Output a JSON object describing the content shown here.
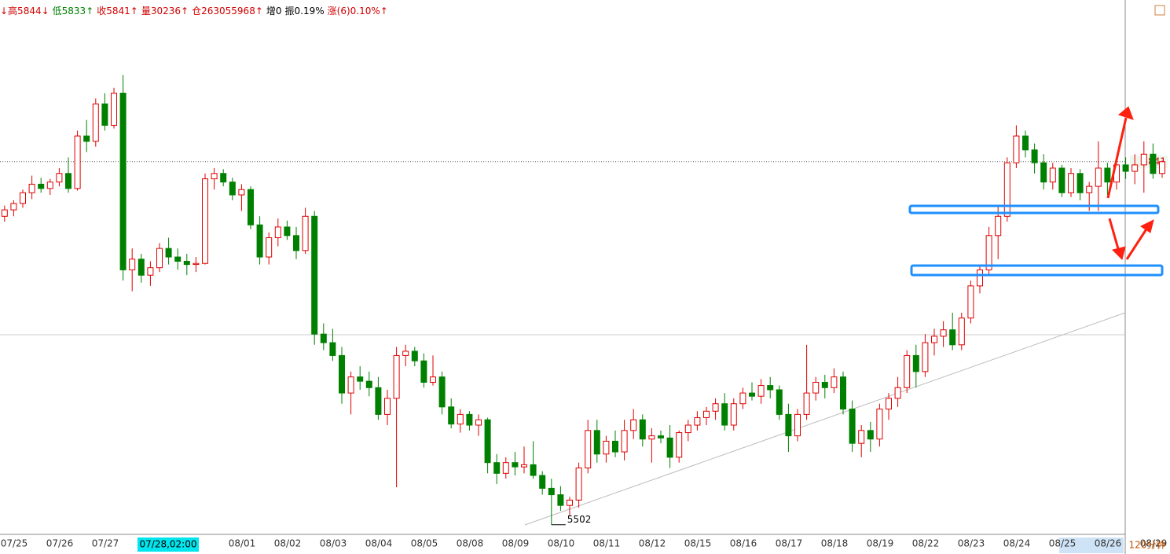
{
  "chart_data": {
    "type": "candlestick",
    "header": [
      "↓高5844↓",
      "低5833↑",
      "收5841↑",
      "量30236↑",
      "仓263055968↑",
      "增0",
      "振0.19%",
      "涨(6)0.10%↑"
    ],
    "ylim": [
      5493,
      5992
    ],
    "candles_per_day": 5,
    "day_labels": [
      "07/25",
      "07/26",
      "07/27",
      null,
      null,
      "08/01",
      "08/02",
      "08/03",
      "08/04",
      "08/05",
      "08/08",
      "08/09",
      "08/10",
      "08/11",
      "08/12",
      "08/15",
      "08/16",
      "08/17",
      "08/18",
      "08/19",
      "08/22",
      "08/23",
      "08/24",
      "08/25",
      "08/26",
      "08/29"
    ],
    "cursor_label": "07/28,02:00",
    "period_label": "120分钟",
    "last_price": 5841,
    "low_label": 5502,
    "candles": [
      [
        5790,
        5800,
        5785,
        5796
      ],
      [
        5796,
        5805,
        5790,
        5802
      ],
      [
        5802,
        5815,
        5798,
        5812
      ],
      [
        5812,
        5828,
        5806,
        5820
      ],
      [
        5820,
        5826,
        5812,
        5816
      ],
      [
        5816,
        5825,
        5810,
        5822
      ],
      [
        5822,
        5835,
        5818,
        5830
      ],
      [
        5830,
        5845,
        5812,
        5816
      ],
      [
        5816,
        5870,
        5814,
        5865
      ],
      [
        5865,
        5880,
        5850,
        5860
      ],
      [
        5860,
        5900,
        5855,
        5895
      ],
      [
        5895,
        5905,
        5870,
        5875
      ],
      [
        5875,
        5910,
        5872,
        5905
      ],
      [
        5905,
        5922,
        5730,
        5740
      ],
      [
        5740,
        5760,
        5720,
        5750
      ],
      [
        5750,
        5755,
        5728,
        5735
      ],
      [
        5735,
        5748,
        5725,
        5742
      ],
      [
        5742,
        5765,
        5738,
        5760
      ],
      [
        5760,
        5770,
        5745,
        5752
      ],
      [
        5752,
        5760,
        5740,
        5748
      ],
      [
        5748,
        5755,
        5735,
        5745
      ],
      [
        5745,
        5752,
        5738,
        5746
      ],
      [
        5746,
        5830,
        5745,
        5825
      ],
      [
        5825,
        5835,
        5815,
        5830
      ],
      [
        5830,
        5834,
        5818,
        5822
      ],
      [
        5822,
        5826,
        5805,
        5810
      ],
      [
        5810,
        5820,
        5795,
        5815
      ],
      [
        5815,
        5818,
        5778,
        5782
      ],
      [
        5782,
        5790,
        5745,
        5752
      ],
      [
        5752,
        5775,
        5745,
        5770
      ],
      [
        5770,
        5788,
        5762,
        5780
      ],
      [
        5780,
        5786,
        5768,
        5772
      ],
      [
        5772,
        5780,
        5750,
        5758
      ],
      [
        5758,
        5798,
        5755,
        5790
      ],
      [
        5790,
        5795,
        5670,
        5680
      ],
      [
        5680,
        5690,
        5665,
        5672
      ],
      [
        5672,
        5685,
        5655,
        5660
      ],
      [
        5660,
        5668,
        5615,
        5625
      ],
      [
        5625,
        5645,
        5605,
        5640
      ],
      [
        5640,
        5650,
        5628,
        5636
      ],
      [
        5636,
        5645,
        5622,
        5630
      ],
      [
        5630,
        5640,
        5600,
        5605
      ],
      [
        5605,
        5628,
        5595,
        5620
      ],
      [
        5620,
        5668,
        5537,
        5660
      ],
      [
        5660,
        5670,
        5650,
        5664
      ],
      [
        5664,
        5668,
        5650,
        5655
      ],
      [
        5655,
        5662,
        5630,
        5635
      ],
      [
        5635,
        5660,
        5632,
        5640
      ],
      [
        5640,
        5645,
        5605,
        5612
      ],
      [
        5612,
        5620,
        5592,
        5596
      ],
      [
        5596,
        5610,
        5588,
        5605
      ],
      [
        5605,
        5608,
        5590,
        5595
      ],
      [
        5595,
        5605,
        5585,
        5600
      ],
      [
        5600,
        5602,
        5550,
        5560
      ],
      [
        5560,
        5568,
        5540,
        5550
      ],
      [
        5550,
        5565,
        5545,
        5560
      ],
      [
        5560,
        5570,
        5548,
        5556
      ],
      [
        5556,
        5575,
        5550,
        5558
      ],
      [
        5558,
        5580,
        5545,
        5548
      ],
      [
        5548,
        5552,
        5530,
        5536
      ],
      [
        5536,
        5545,
        5502,
        5530
      ],
      [
        5530,
        5538,
        5515,
        5520
      ],
      [
        5520,
        5528,
        5510,
        5525
      ],
      [
        5525,
        5560,
        5518,
        5555
      ],
      [
        5555,
        5600,
        5550,
        5590
      ],
      [
        5590,
        5600,
        5560,
        5568
      ],
      [
        5568,
        5585,
        5560,
        5580
      ],
      [
        5580,
        5590,
        5565,
        5570
      ],
      [
        5570,
        5600,
        5562,
        5590
      ],
      [
        5590,
        5610,
        5582,
        5600
      ],
      [
        5600,
        5605,
        5575,
        5582
      ],
      [
        5582,
        5592,
        5560,
        5585
      ],
      [
        5585,
        5590,
        5578,
        5583
      ],
      [
        5583,
        5595,
        5555,
        5565
      ],
      [
        5565,
        5590,
        5560,
        5588
      ],
      [
        5588,
        5600,
        5580,
        5595
      ],
      [
        5595,
        5608,
        5590,
        5602
      ],
      [
        5602,
        5612,
        5595,
        5608
      ],
      [
        5608,
        5620,
        5600,
        5615
      ],
      [
        5615,
        5625,
        5590,
        5595
      ],
      [
        5595,
        5620,
        5590,
        5615
      ],
      [
        5615,
        5630,
        5610,
        5625
      ],
      [
        5625,
        5635,
        5618,
        5622
      ],
      [
        5622,
        5638,
        5615,
        5632
      ],
      [
        5632,
        5640,
        5620,
        5628
      ],
      [
        5628,
        5632,
        5600,
        5605
      ],
      [
        5605,
        5615,
        5570,
        5585
      ],
      [
        5585,
        5610,
        5580,
        5605
      ],
      [
        5605,
        5670,
        5600,
        5625
      ],
      [
        5625,
        5640,
        5618,
        5635
      ],
      [
        5635,
        5642,
        5620,
        5630
      ],
      [
        5630,
        5648,
        5625,
        5640
      ],
      [
        5640,
        5645,
        5605,
        5610
      ],
      [
        5610,
        5618,
        5570,
        5578
      ],
      [
        5578,
        5595,
        5565,
        5590
      ],
      [
        5590,
        5598,
        5570,
        5582
      ],
      [
        5582,
        5615,
        5575,
        5610
      ],
      [
        5610,
        5625,
        5600,
        5620
      ],
      [
        5620,
        5640,
        5612,
        5630
      ],
      [
        5630,
        5665,
        5625,
        5660
      ],
      [
        5660,
        5670,
        5630,
        5645
      ],
      [
        5645,
        5680,
        5640,
        5672
      ],
      [
        5672,
        5685,
        5660,
        5678
      ],
      [
        5678,
        5692,
        5668,
        5684
      ],
      [
        5684,
        5700,
        5665,
        5670
      ],
      [
        5670,
        5700,
        5665,
        5695
      ],
      [
        5695,
        5730,
        5690,
        5725
      ],
      [
        5725,
        5745,
        5718,
        5740
      ],
      [
        5740,
        5780,
        5735,
        5772
      ],
      [
        5772,
        5800,
        5750,
        5790
      ],
      [
        5790,
        5845,
        5785,
        5840
      ],
      [
        5840,
        5875,
        5835,
        5865
      ],
      [
        5865,
        5870,
        5845,
        5852
      ],
      [
        5852,
        5858,
        5830,
        5840
      ],
      [
        5840,
        5848,
        5815,
        5822
      ],
      [
        5822,
        5840,
        5815,
        5835
      ],
      [
        5835,
        5838,
        5808,
        5812
      ],
      [
        5812,
        5835,
        5808,
        5830
      ],
      [
        5830,
        5834,
        5805,
        5812
      ],
      [
        5812,
        5822,
        5795,
        5818
      ],
      [
        5818,
        5860,
        5795,
        5835
      ],
      [
        5835,
        5840,
        5810,
        5822
      ],
      [
        5822,
        5845,
        5815,
        5838
      ],
      [
        5838,
        5845,
        5825,
        5832
      ],
      [
        5832,
        5848,
        5820,
        5838
      ],
      [
        5838,
        5860,
        5812,
        5848
      ],
      [
        5848,
        5858,
        5825,
        5830
      ],
      [
        5830,
        5842,
        5826,
        5841
      ]
    ],
    "colors": {
      "up": "#e00000",
      "down": "#008000"
    }
  }
}
